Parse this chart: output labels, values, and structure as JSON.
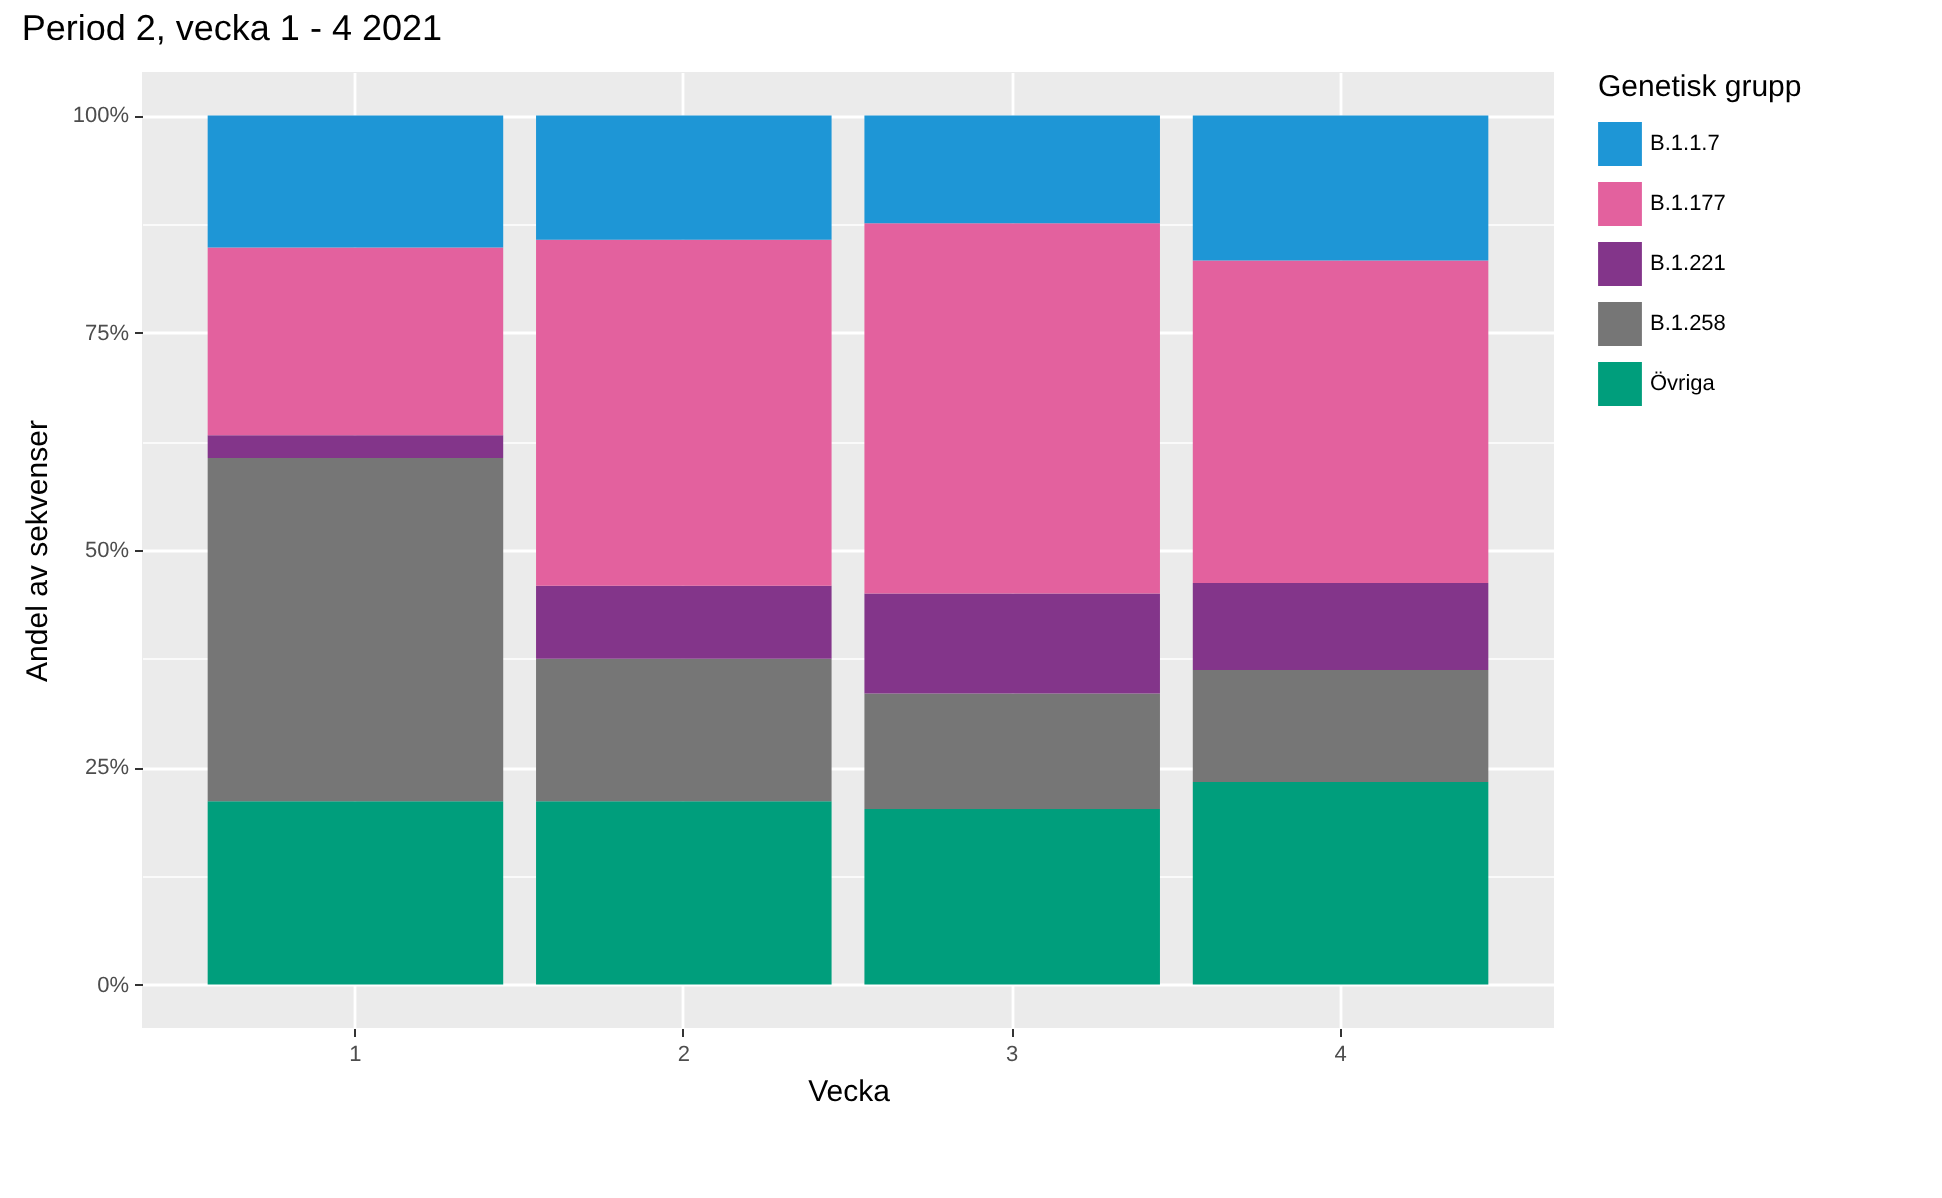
{
  "chart_data": {
    "type": "bar",
    "title": "Period 2, vecka 1 - 4 2021",
    "xlabel": "Vecka",
    "ylabel": "Andel av sekvenser",
    "legend_title": "Genetisk grupp",
    "categories": [
      "1",
      "2",
      "3",
      "4"
    ],
    "stacked": true,
    "grid": true,
    "legend": "right",
    "series": [
      {
        "name": "Övriga",
        "color": "#009e7c",
        "values": [
          21.1,
          21.1,
          20.2,
          23.3
        ]
      },
      {
        "name": "B.1.258",
        "color": "#767676",
        "values": [
          39.5,
          16.4,
          13.3,
          12.9
        ]
      },
      {
        "name": "B.1.221",
        "color": "#83358a",
        "values": [
          2.6,
          8.4,
          11.5,
          10.0
        ]
      },
      {
        "name": "B.1.177",
        "color": "#e3619e",
        "values": [
          21.6,
          39.8,
          42.6,
          37.1
        ]
      },
      {
        "name": "B.1.1.7",
        "color": "#1e96d6",
        "values": [
          15.2,
          14.3,
          12.4,
          16.7
        ]
      }
    ],
    "ylim": [
      -5,
      105
    ],
    "yticks": [
      {
        "value": 0,
        "label": "0%"
      },
      {
        "value": 12.5,
        "label": null
      },
      {
        "value": 25,
        "label": "25%"
      },
      {
        "value": 37.5,
        "label": null
      },
      {
        "value": 50,
        "label": "50%"
      },
      {
        "value": 62.5,
        "label": null
      },
      {
        "value": 75,
        "label": "75%"
      },
      {
        "value": 87.5,
        "label": null
      },
      {
        "value": 100,
        "label": "100%"
      }
    ]
  }
}
